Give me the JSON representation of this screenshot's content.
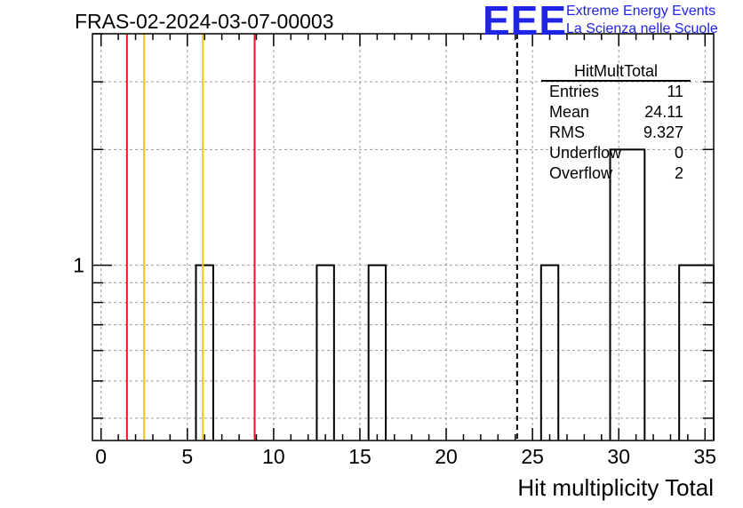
{
  "header": {
    "run_title": "FRAS-02-2024-03-07-00003",
    "logo_mark": "EEE",
    "logo_line1": "Extreme Energy Events",
    "logo_line2": "La Scienza nelle Scuole"
  },
  "stats_box": {
    "title": "HitMultTotal",
    "rows": [
      {
        "label": "Entries",
        "value": "11"
      },
      {
        "label": "Mean",
        "value": "24.11"
      },
      {
        "label": "RMS",
        "value": "9.327"
      },
      {
        "label": "Underflow",
        "value": "0"
      },
      {
        "label": "Overflow",
        "value": "2"
      }
    ]
  },
  "chart_data": {
    "type": "bar",
    "title": "FRAS-02-2024-03-07-00003",
    "xlabel": "Hit multiplicity Total",
    "ylabel": "",
    "log_y": true,
    "xlim": [
      -0.5,
      35.5
    ],
    "ylim": [
      0.35,
      4.0
    ],
    "xticks": [
      0,
      5,
      10,
      15,
      20,
      25,
      30,
      35
    ],
    "yticks_labeled": [
      1
    ],
    "grid": true,
    "bins": [
      {
        "lo": 5.5,
        "hi": 6.5,
        "count": 1
      },
      {
        "lo": 12.5,
        "hi": 13.5,
        "count": 1
      },
      {
        "lo": 15.5,
        "hi": 16.5,
        "count": 1
      },
      {
        "lo": 25.5,
        "hi": 26.5,
        "count": 1
      },
      {
        "lo": 29.5,
        "hi": 31.5,
        "count": 2
      },
      {
        "lo": 33.5,
        "hi": 35.5,
        "count": 1
      }
    ],
    "vlines": [
      {
        "x": 1.5,
        "color": "#e8141c"
      },
      {
        "x": 2.5,
        "color": "#f2c40f"
      },
      {
        "x": 5.9,
        "color": "#f2c40f"
      },
      {
        "x": 8.9,
        "color": "#e8141c"
      },
      {
        "x": 24.11,
        "color": "#000000",
        "dashed": true
      }
    ]
  }
}
